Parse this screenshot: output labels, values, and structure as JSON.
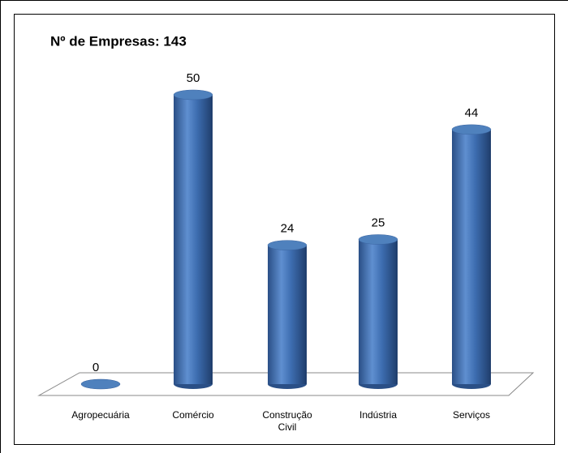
{
  "chart_data": {
    "type": "bar",
    "title": "Nº de Empresas: 143",
    "categories": [
      "Agropecuária",
      "Comércio",
      "Construção Civil",
      "Indústria",
      "Serviços"
    ],
    "values": [
      0,
      50,
      24,
      25,
      44
    ],
    "color": "#4f81bd"
  }
}
